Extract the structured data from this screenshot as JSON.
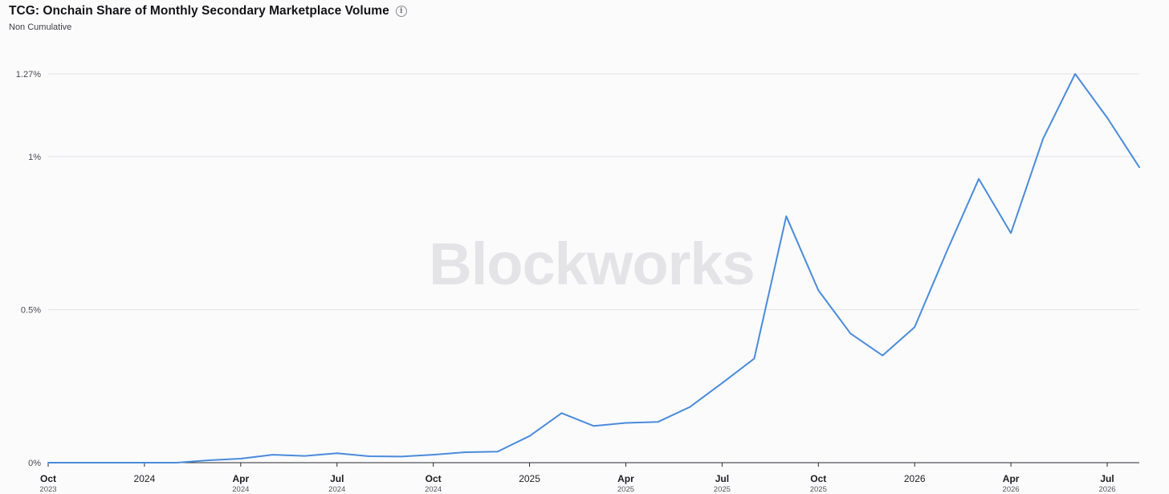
{
  "header": {
    "title": "TCG: Onchain Share of Monthly Secondary Marketplace Volume",
    "subtitle": "Non Cumulative",
    "info_icon": "info-circle-icon"
  },
  "watermark": "Blockworks",
  "chart_data": {
    "type": "line",
    "title": "TCG: Onchain Share of Monthly Secondary Marketplace Volume",
    "subtitle": "Non Cumulative",
    "xlabel": "",
    "ylabel": "",
    "ylim": [
      0,
      1.27
    ],
    "y_unit": "%",
    "grid": true,
    "y_ticks": [
      {
        "value": 0,
        "label": "0%"
      },
      {
        "value": 0.5,
        "label": "0.5%"
      },
      {
        "value": 1,
        "label": "1%"
      },
      {
        "value": 1.27,
        "label": "1.27%"
      }
    ],
    "x_ticks": [
      {
        "date": "2023-10",
        "label": "Oct",
        "sub": "2023"
      },
      {
        "date": "2024-01",
        "label": "2024",
        "sub": ""
      },
      {
        "date": "2024-04",
        "label": "Apr",
        "sub": "2024"
      },
      {
        "date": "2024-07",
        "label": "Jul",
        "sub": "2024"
      },
      {
        "date": "2024-10",
        "label": "Oct",
        "sub": "2024"
      },
      {
        "date": "2025-01",
        "label": "2025",
        "sub": ""
      },
      {
        "date": "2025-04",
        "label": "Apr",
        "sub": "2025"
      },
      {
        "date": "2025-07",
        "label": "Jul",
        "sub": "2025"
      },
      {
        "date": "2025-10",
        "label": "Oct",
        "sub": "2025"
      },
      {
        "date": "2026-01",
        "label": "2026",
        "sub": ""
      },
      {
        "date": "2026-04",
        "label": "Apr",
        "sub": "2026"
      },
      {
        "date": "2026-07",
        "label": "Jul",
        "sub": "2026"
      }
    ],
    "x": [
      "2023-10",
      "2023-11",
      "2023-12",
      "2024-01",
      "2024-02",
      "2024-03",
      "2024-04",
      "2024-05",
      "2024-06",
      "2024-07",
      "2024-08",
      "2024-09",
      "2024-10",
      "2024-11",
      "2024-12",
      "2025-01",
      "2025-02",
      "2025-03",
      "2025-04",
      "2025-05",
      "2025-06",
      "2025-07",
      "2025-08",
      "2025-09",
      "2025-10",
      "2025-11",
      "2025-12",
      "2026-01",
      "2026-02",
      "2026-03",
      "2026-04",
      "2026-05",
      "2026-06",
      "2026-07",
      "2026-08"
    ],
    "series": [
      {
        "color": "#4a8bdc",
        "values": [
          0,
          0,
          0,
          0,
          0,
          0.008,
          0.013,
          0.026,
          0.022,
          0.031,
          0.021,
          0.02,
          0.026,
          0.034,
          0.036,
          0.087,
          0.162,
          0.12,
          0.13,
          0.133,
          0.182,
          0.26,
          0.34,
          0.805,
          0.563,
          0.422,
          0.35,
          0.443,
          0.69,
          0.927,
          0.75,
          1.058,
          1.27,
          1.127,
          0.965
        ]
      }
    ]
  }
}
